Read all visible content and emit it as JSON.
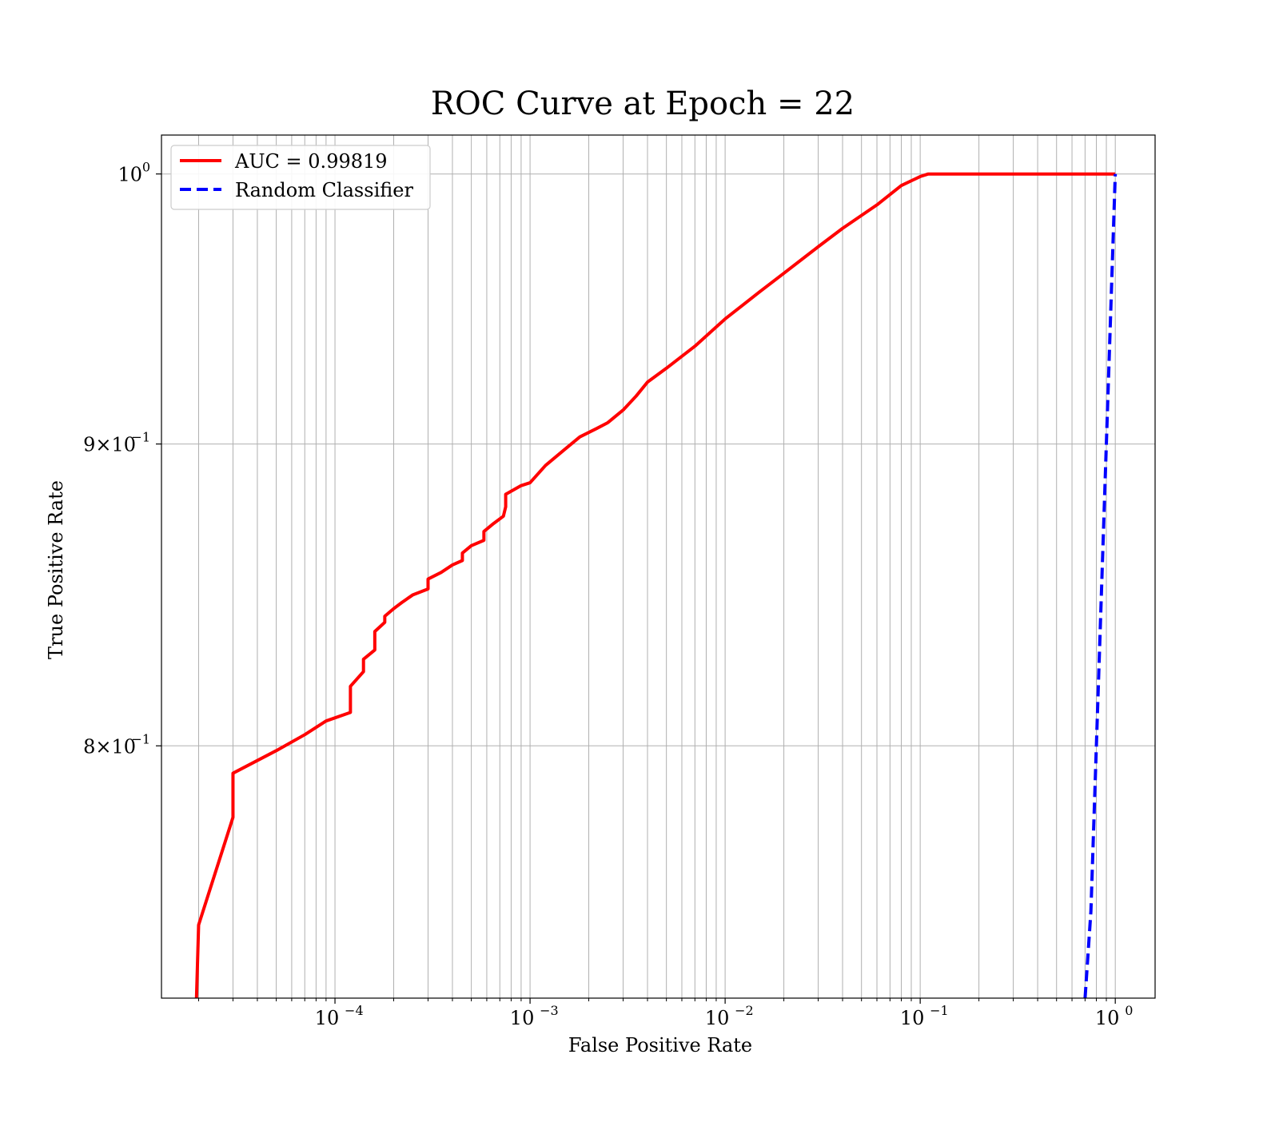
{
  "chart_data": {
    "type": "line",
    "title": "ROC Curve at Epoch = 22",
    "xlabel": "False Positive Rate",
    "ylabel": "True Positive Rate",
    "xscale": "log",
    "yscale": "log",
    "xlim": [
      1.29e-05,
      1.6
    ],
    "ylim": [
      0.725,
      1.0153
    ],
    "grid": "on (major and minor)",
    "legend_position": "upper-left",
    "x_tick_labels": [
      {
        "value": 0.0001,
        "base": "10",
        "exp": "−4"
      },
      {
        "value": 0.001,
        "base": "10",
        "exp": "−3"
      },
      {
        "value": 0.01,
        "base": "10",
        "exp": "−2"
      },
      {
        "value": 0.1,
        "base": "10",
        "exp": "−1"
      },
      {
        "value": 1,
        "base": "10",
        "exp": "0"
      }
    ],
    "y_tick_labels": [
      {
        "value": 1.0,
        "mant": "",
        "base": "10",
        "exp": "0"
      },
      {
        "value": 0.9,
        "mant": "9×",
        "base": "10",
        "exp": "−1"
      },
      {
        "value": 0.8,
        "mant": "8×",
        "base": "10",
        "exp": "−1"
      }
    ],
    "series": [
      {
        "name": "AUC = 0.99819",
        "color": "#ff0000",
        "style": "solid",
        "points": [
          [
            1.95e-05,
            0.725
          ],
          [
            2e-05,
            0.746
          ],
          [
            3e-05,
            0.778
          ],
          [
            3e-05,
            0.7915
          ],
          [
            5e-05,
            0.7985
          ],
          [
            7e-05,
            0.8035
          ],
          [
            9e-05,
            0.8078
          ],
          [
            0.00012,
            0.8105
          ],
          [
            0.00012,
            0.8188
          ],
          [
            0.00014,
            0.8235
          ],
          [
            0.00014,
            0.8275
          ],
          [
            0.00016,
            0.8305
          ],
          [
            0.00016,
            0.8365
          ],
          [
            0.00018,
            0.8395
          ],
          [
            0.00018,
            0.8415
          ],
          [
            0.0002,
            0.844
          ],
          [
            0.00022,
            0.846
          ],
          [
            0.00025,
            0.8485
          ],
          [
            0.0003,
            0.8505
          ],
          [
            0.0003,
            0.8538
          ],
          [
            0.00035,
            0.856
          ],
          [
            0.0004,
            0.8585
          ],
          [
            0.00045,
            0.86
          ],
          [
            0.00045,
            0.8625
          ],
          [
            0.0005,
            0.865
          ],
          [
            0.00058,
            0.8668
          ],
          [
            0.00058,
            0.8698
          ],
          [
            0.00065,
            0.8725
          ],
          [
            0.00073,
            0.875
          ],
          [
            0.00075,
            0.8782
          ],
          [
            0.00075,
            0.8825
          ],
          [
            0.0009,
            0.8855
          ],
          [
            0.001,
            0.8865
          ],
          [
            0.0012,
            0.8925
          ],
          [
            0.0015,
            0.898
          ],
          [
            0.0018,
            0.9025
          ],
          [
            0.0022,
            0.9055
          ],
          [
            0.0025,
            0.9075
          ],
          [
            0.003,
            0.912
          ],
          [
            0.0035,
            0.917
          ],
          [
            0.004,
            0.922
          ],
          [
            0.005,
            0.927
          ],
          [
            0.007,
            0.935
          ],
          [
            0.01,
            0.945
          ],
          [
            0.015,
            0.955
          ],
          [
            0.02,
            0.962
          ],
          [
            0.03,
            0.972
          ],
          [
            0.04,
            0.979
          ],
          [
            0.06,
            0.988
          ],
          [
            0.08,
            0.9955
          ],
          [
            0.1,
            0.999
          ],
          [
            0.11,
            1.0
          ],
          [
            1.0,
            1.0
          ]
        ]
      },
      {
        "name": "Random Classifier",
        "color": "#0000ff",
        "style": "dashed",
        "points": [
          [
            0.7,
            0.725
          ],
          [
            0.75,
            0.75
          ],
          [
            0.8,
            0.8
          ],
          [
            0.85,
            0.85
          ],
          [
            0.9,
            0.9
          ],
          [
            0.95,
            0.95
          ],
          [
            1.0,
            1.0
          ]
        ]
      }
    ]
  }
}
